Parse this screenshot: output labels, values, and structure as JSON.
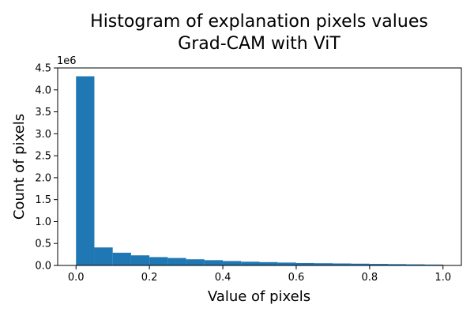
{
  "chart_data": {
    "type": "bar",
    "title_lines": [
      "Histogram of explanation pixels values",
      "Grad-CAM with ViT"
    ],
    "xlabel": "Value of pixels",
    "ylabel": "Count of pixels",
    "y_offset_label": "1e6",
    "color": "#1f77b4",
    "xlim": [
      -0.05,
      1.05
    ],
    "ylim": [
      0,
      4.5
    ],
    "x_ticks": [
      0.0,
      0.2,
      0.4,
      0.6,
      0.8,
      1.0
    ],
    "x_tick_labels": [
      "0.0",
      "0.2",
      "0.4",
      "0.6",
      "0.8",
      "1.0"
    ],
    "y_ticks": [
      0,
      0.5,
      1.0,
      1.5,
      2.0,
      2.5,
      3.0,
      3.5,
      4.0,
      4.5
    ],
    "y_tick_labels": [
      "0.0",
      "0.5",
      "1.0",
      "1.5",
      "2.0",
      "2.5",
      "3.0",
      "3.5",
      "4.0",
      "4.5"
    ],
    "bin_edges": [
      0.0,
      0.05,
      0.1,
      0.15,
      0.2,
      0.25,
      0.3,
      0.35,
      0.4,
      0.45,
      0.5,
      0.55,
      0.6,
      0.65,
      0.7,
      0.75,
      0.8,
      0.85,
      0.9,
      0.95,
      1.0
    ],
    "values": [
      4.31,
      0.41,
      0.29,
      0.23,
      0.19,
      0.17,
      0.14,
      0.12,
      0.1,
      0.085,
      0.075,
      0.065,
      0.055,
      0.05,
      0.045,
      0.04,
      0.035,
      0.03,
      0.025,
      0.02
    ]
  }
}
